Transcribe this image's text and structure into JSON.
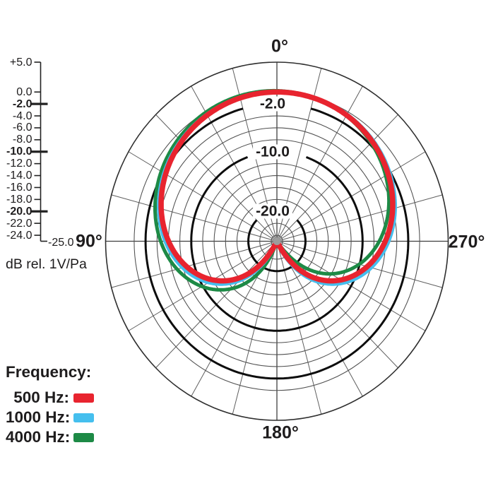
{
  "page": {
    "background": "#ffffff"
  },
  "chart_data": {
    "type": "polar",
    "kind": "microphone-polar-pattern",
    "db_axis": {
      "unit_label": "dB rel. 1V/Pa",
      "min_db": -25,
      "max_db": 5,
      "foot_label": "-25.0",
      "scale_ticks": [
        {
          "label": "+5.0",
          "db": 5,
          "bold": false
        },
        {
          "label": "0.0",
          "db": 0,
          "bold": false
        },
        {
          "label": "-2.0",
          "db": -2,
          "bold": true
        },
        {
          "label": "-4.0",
          "db": -4,
          "bold": false
        },
        {
          "label": "-6.0",
          "db": -6,
          "bold": false
        },
        {
          "label": "-8.0",
          "db": -8,
          "bold": false
        },
        {
          "label": "-10.0",
          "db": -10,
          "bold": true
        },
        {
          "label": "-12.0",
          "db": -12,
          "bold": false
        },
        {
          "label": "-14.0",
          "db": -14,
          "bold": false
        },
        {
          "label": "-16.0",
          "db": -16,
          "bold": false
        },
        {
          "label": "-18.0",
          "db": -18,
          "bold": false
        },
        {
          "label": "-20.0",
          "db": -20,
          "bold": true
        },
        {
          "label": "-22.0",
          "db": -22,
          "bold": false
        },
        {
          "label": "-24.0",
          "db": -24,
          "bold": false
        }
      ]
    },
    "rings": [
      {
        "db": 5,
        "style": "outer"
      },
      {
        "db": 0,
        "style": "thin"
      },
      {
        "db": -2,
        "style": "bold",
        "gap_half_deg": 15
      },
      {
        "db": -4,
        "style": "thin"
      },
      {
        "db": -6,
        "style": "thin"
      },
      {
        "db": -8,
        "style": "thin"
      },
      {
        "db": -10,
        "style": "bold",
        "gap_half_deg": 20
      },
      {
        "db": -12,
        "style": "thin"
      },
      {
        "db": -14,
        "style": "thin"
      },
      {
        "db": -16,
        "style": "thin"
      },
      {
        "db": -18,
        "style": "thin"
      },
      {
        "db": -20,
        "style": "bold",
        "gap_half_deg": 45
      },
      {
        "db": -22,
        "style": "thin"
      },
      {
        "db": -24,
        "style": "thin"
      }
    ],
    "ring_labels": [
      {
        "label": "-2.0",
        "db": -2
      },
      {
        "label": "-10.0",
        "db": -10
      },
      {
        "label": "-20.0",
        "db": -20
      }
    ],
    "angle_labels": [
      {
        "label": "0°",
        "deg": 0
      },
      {
        "label": "90°",
        "deg": 90
      },
      {
        "label": "180°",
        "deg": 180
      },
      {
        "label": "270°",
        "deg": 270
      }
    ],
    "spoke_step_deg": 15,
    "sample_angles_deg": [
      0,
      15,
      30,
      45,
      60,
      75,
      90,
      105,
      120,
      135,
      150,
      165,
      180
    ],
    "symmetry": "values mirrored about the 0°–180° axis",
    "series": [
      {
        "name": "500 Hz",
        "color": "#e8242f",
        "stroke_width": 7.5,
        "model": {
          "a": 0.5,
          "rot_deg": 0,
          "boost_db": 0,
          "rear_boost_db": 0
        },
        "values_db": [
          0,
          -0.2,
          -0.6,
          -1.4,
          -2.5,
          -4.0,
          -6.0,
          -8.6,
          -12.0,
          -16.7,
          -23.5,
          -25,
          -25
        ]
      },
      {
        "name": "1000 Hz",
        "color": "#45bfee",
        "stroke_width": 6.5,
        "model": {
          "a": 0.5,
          "rot_deg": 0,
          "boost_db": 0,
          "rear_boost_db": 1.0
        },
        "values_db": [
          0,
          -0.1,
          -0.5,
          -1.2,
          -2.3,
          -3.7,
          -5.5,
          -8.0,
          -11.3,
          -15.8,
          -22.6,
          -25,
          -25
        ]
      },
      {
        "name": "4000 Hz",
        "color": "#1d8a46",
        "stroke_width": 5,
        "model": {
          "a": 0.5,
          "rot_deg": 8,
          "boost_db": 0.25,
          "rear_boost_db": 0
        },
        "values_db": [
          0,
          -0.2,
          -0.5,
          -1.2,
          -2.3,
          -3.9,
          -5.8,
          -8.4,
          -11.7,
          -16.3,
          -22.8,
          -25,
          -25
        ]
      }
    ],
    "center_dot_color": "#9c9c9c",
    "grid_colors": {
      "thin": "#4f4f4f",
      "bold": "#0d0d0d",
      "outer": "#2f2f2f",
      "spoke": "#5f5f5f",
      "spoke_main": "#3f3f3f",
      "scale": "#222222"
    }
  },
  "legend": {
    "title": "Frequency:",
    "items": [
      {
        "label": "500 Hz:",
        "color": "#e8242f"
      },
      {
        "label": "1000 Hz:",
        "color": "#45bfee"
      },
      {
        "label": "4000 Hz:",
        "color": "#1d8a46"
      }
    ]
  }
}
